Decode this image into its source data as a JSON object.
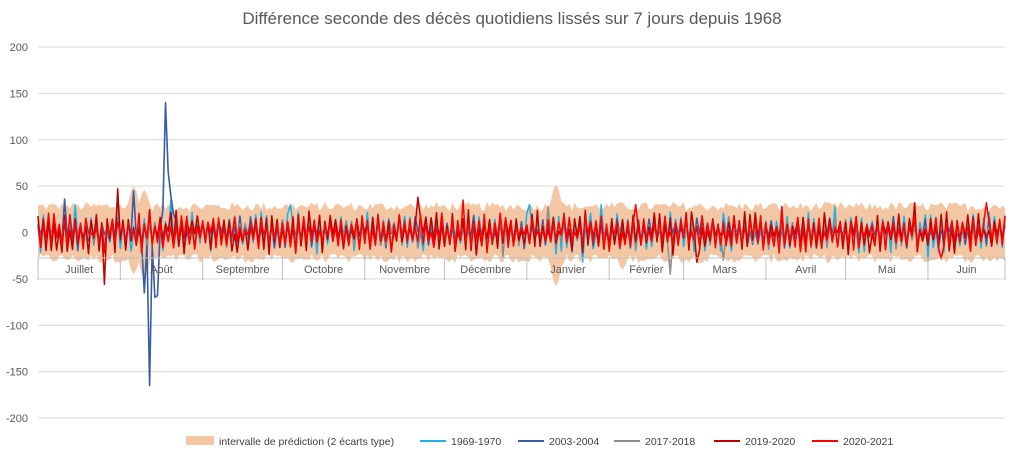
{
  "chart_data": {
    "type": "line",
    "title": "Différence seconde des décès quotidiens lissés sur 7 jours depuis 1968",
    "xlabel": "",
    "ylabel": "",
    "ylim": [
      -200,
      200
    ],
    "yticks": [
      200,
      150,
      100,
      50,
      0,
      -50,
      -100,
      -150,
      -200
    ],
    "grid": true,
    "legend_position": "bottom",
    "months": [
      "Juillet",
      "Août",
      "Septembre",
      "Octobre",
      "Novembre",
      "Décembre",
      "Janvier",
      "Février",
      "Mars",
      "Avril",
      "Mai",
      "Juin"
    ],
    "month_days": [
      31,
      31,
      30,
      31,
      30,
      31,
      31,
      28,
      31,
      30,
      31,
      30
    ],
    "band": {
      "name": "intervalle de prédiction (2 écarts type)",
      "color": "#f4c7a4",
      "upper_typical": 28,
      "lower_typical": -28,
      "upper_peaks": [
        [
          36,
          50
        ],
        [
          40,
          46
        ],
        [
          195,
          52
        ],
        [
          360,
          30
        ]
      ],
      "lower_peaks": [
        [
          36,
          -45
        ],
        [
          40,
          -50
        ],
        [
          195,
          -58
        ],
        [
          220,
          -40
        ]
      ]
    },
    "series": [
      {
        "name": "1969-1970",
        "color": "#1fb0e8",
        "amplitude": 14,
        "extremes": [
          [
            14,
            30
          ],
          [
            50,
            35
          ],
          [
            95,
            30
          ],
          [
            185,
            30
          ],
          [
            212,
            30
          ],
          [
            205,
            -32
          ],
          [
            300,
            28
          ],
          [
            335,
            -30
          ]
        ]
      },
      {
        "name": "2003-2004",
        "color": "#3b5ba5",
        "amplitude": 11,
        "extremes": [
          [
            36,
            45
          ],
          [
            40,
            -65
          ],
          [
            42,
            -165
          ],
          [
            44,
            -70
          ],
          [
            45,
            -68
          ],
          [
            47,
            25
          ],
          [
            48,
            140
          ],
          [
            49,
            65
          ],
          [
            50,
            40
          ],
          [
            51,
            20
          ],
          [
            30,
            42
          ],
          [
            10,
            36
          ]
        ]
      },
      {
        "name": "2017-2018",
        "color": "#8c8c8c",
        "amplitude": 10,
        "extremes": [
          [
            192,
            28
          ],
          [
            238,
            -45
          ],
          [
            258,
            -30
          ],
          [
            175,
            -26
          ]
        ]
      },
      {
        "name": "2019-2020",
        "color": "#c00000",
        "amplitude": 15,
        "extremes": [
          [
            25,
            -56
          ],
          [
            30,
            47
          ],
          [
            143,
            38
          ],
          [
            248,
            -32
          ],
          [
            330,
            32
          ]
        ]
      },
      {
        "name": "2020-2021",
        "color": "#ff0000",
        "amplitude": 13,
        "extremes": [
          [
            160,
            35
          ],
          [
            225,
            30
          ],
          [
            280,
            28
          ],
          [
            357,
            32
          ],
          [
            340,
            -28
          ]
        ]
      }
    ]
  }
}
